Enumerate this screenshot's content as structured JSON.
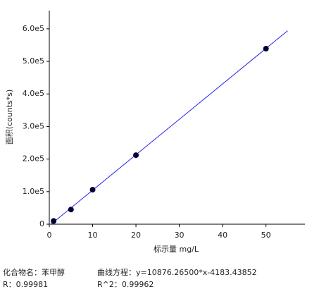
{
  "chart_data": {
    "type": "scatter",
    "x_label": "标示量 mg/L",
    "y_label": "面积(counts*s)",
    "x": [
      1,
      5,
      10,
      20,
      50
    ],
    "series": [
      {
        "color": "#000033",
        "values": [
          10000,
          45000,
          106000,
          212000,
          539000
        ]
      }
    ],
    "fit_line": {
      "color": "#2222ee",
      "x": [
        0.4,
        55
      ],
      "values": [
        0,
        594000
      ]
    },
    "xlim": [
      0,
      59
    ],
    "ylim": [
      0,
      656000
    ],
    "xticks": [
      0,
      10,
      20,
      30,
      40,
      50
    ],
    "yticks": [
      0,
      {
        "value": 100000,
        "label": "1.0e5"
      },
      {
        "value": 200000,
        "label": "2.0e5"
      },
      {
        "value": 300000,
        "label": "3.0e5"
      },
      {
        "value": 400000,
        "label": "4.0e5"
      },
      {
        "value": 500000,
        "label": "5.0e5"
      },
      {
        "value": 600000,
        "label": "6.0e5"
      }
    ]
  },
  "info": {
    "compound": "化合物名：苯甲醇",
    "equation": "曲线方程：y=10876.26500*x-4183.43852",
    "r": "R：0.99981",
    "r2": "R^2：0.99962"
  }
}
